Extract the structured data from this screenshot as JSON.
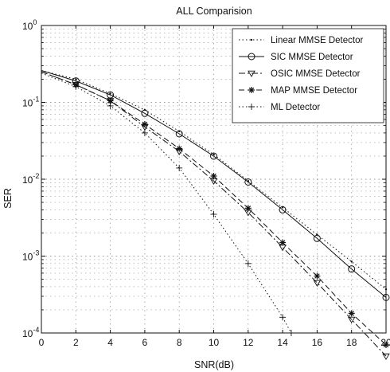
{
  "chart_data": {
    "type": "line",
    "title": "ALL Comparision",
    "xlabel": "SNR(dB)",
    "ylabel": "SER",
    "xlim": [
      0,
      20
    ],
    "ylim": [
      0.0001,
      1
    ],
    "yscale": "log",
    "grid": true,
    "legend_position": "top-right",
    "x_ticks": [
      "0",
      "2",
      "4",
      "6",
      "8",
      "10",
      "12",
      "14",
      "16",
      "18",
      "20"
    ],
    "y_ticks": [
      {
        "base": "10",
        "exp": "0"
      },
      {
        "base": "10",
        "exp": "-1"
      },
      {
        "base": "10",
        "exp": "-2"
      },
      {
        "base": "10",
        "exp": "-3"
      },
      {
        "base": "10",
        "exp": "-4"
      }
    ],
    "series": [
      {
        "name": "Linear MMSE Detector",
        "style": "dotted",
        "marker": "point",
        "x": [
          0,
          2,
          4,
          6,
          8,
          10,
          12,
          14,
          16,
          18,
          20
        ],
        "values": [
          0.26,
          0.2,
          0.13,
          0.08,
          0.042,
          0.021,
          0.0095,
          0.0043,
          0.0019,
          0.00085,
          0.00037
        ]
      },
      {
        "name": "SIC MMSE Detector",
        "style": "solid",
        "marker": "circle",
        "x": [
          0,
          2,
          4,
          6,
          8,
          10,
          12,
          14,
          16,
          18,
          20
        ],
        "values": [
          0.26,
          0.19,
          0.125,
          0.072,
          0.039,
          0.02,
          0.0092,
          0.004,
          0.0017,
          0.00068,
          0.00029
        ]
      },
      {
        "name": "OSIC MMSE Detector",
        "style": "dashdot",
        "marker": "triangle",
        "x": [
          0,
          2,
          4,
          6,
          8,
          10,
          12,
          14,
          16,
          18,
          20
        ],
        "values": [
          0.25,
          0.17,
          0.105,
          0.048,
          0.023,
          0.0095,
          0.0037,
          0.0013,
          0.00045,
          0.00015,
          5e-05
        ]
      },
      {
        "name": "MAP MMSE Detector",
        "style": "dashed",
        "marker": "star",
        "x": [
          0,
          2,
          4,
          6,
          8,
          10,
          12,
          14,
          16,
          18,
          20
        ],
        "values": [
          0.25,
          0.17,
          0.105,
          0.052,
          0.025,
          0.011,
          0.0042,
          0.0015,
          0.00055,
          0.00018,
          7e-05
        ]
      },
      {
        "name": "ML Detector",
        "style": "dotted",
        "marker": "plus",
        "x": [
          0,
          2,
          4,
          6,
          8,
          10,
          12,
          14,
          14.5
        ],
        "values": [
          0.24,
          0.16,
          0.09,
          0.04,
          0.014,
          0.0035,
          0.0008,
          0.00016,
          0.0001
        ]
      }
    ]
  },
  "colors": {
    "axis": "#111111",
    "grid": "#999999",
    "series": "#111111"
  }
}
